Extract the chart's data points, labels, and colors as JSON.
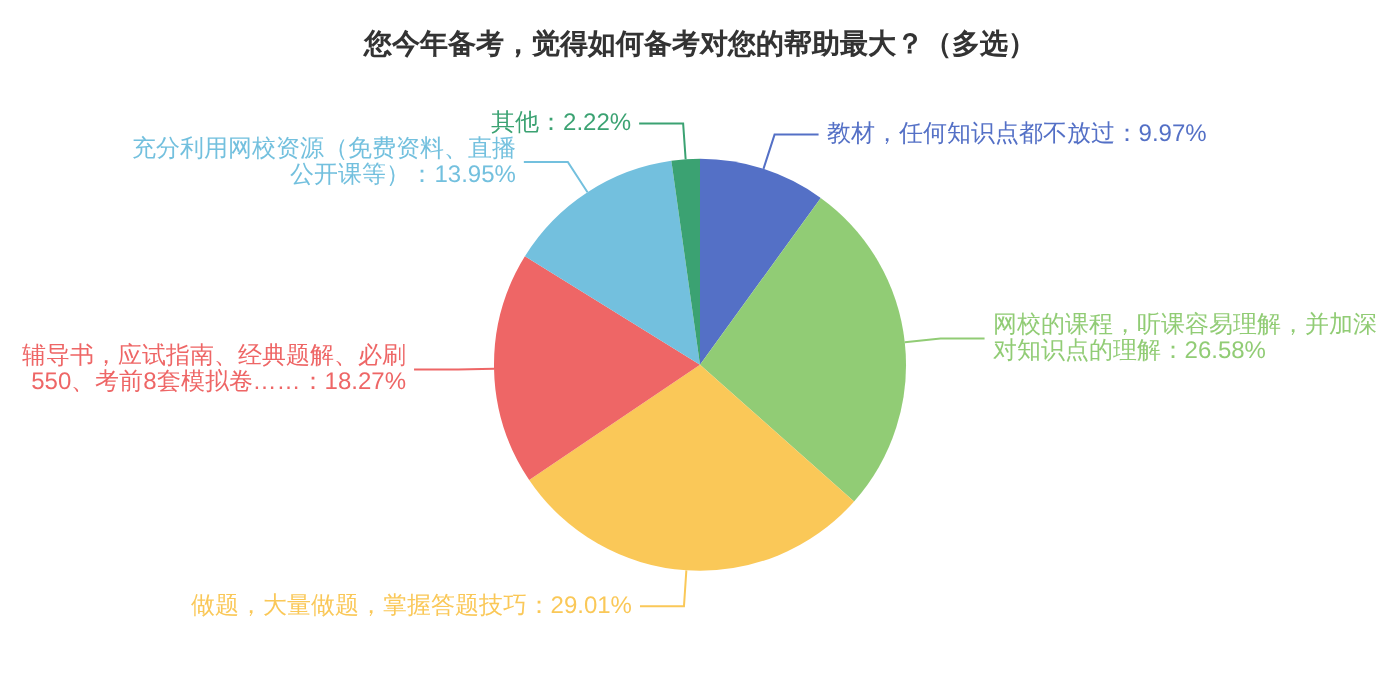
{
  "chart_data": {
    "type": "pie",
    "title": "您今年备考，觉得如何备考对您的帮助最大？（多选）",
    "categories": [
      "教材，任何知识点都不放过：9.97%",
      "网校的课程，听课容易理解，并加深对知识点的理解：26.58%",
      "做题，大量做题，掌握答题技巧：29.01%",
      "辅导书，应试指南、经典题解、必刷550、考前8套模拟卷……：18.27%",
      "充分利用网校资源（免费资料、直播公开课等）：13.95%",
      "其他：2.22%"
    ],
    "values": [
      9.97,
      26.58,
      29.01,
      18.27,
      13.95,
      2.22
    ],
    "colors": [
      "#5470c6",
      "#91cc75",
      "#fac858",
      "#ee6666",
      "#73c0de",
      "#3ba272"
    ],
    "legend": false
  }
}
